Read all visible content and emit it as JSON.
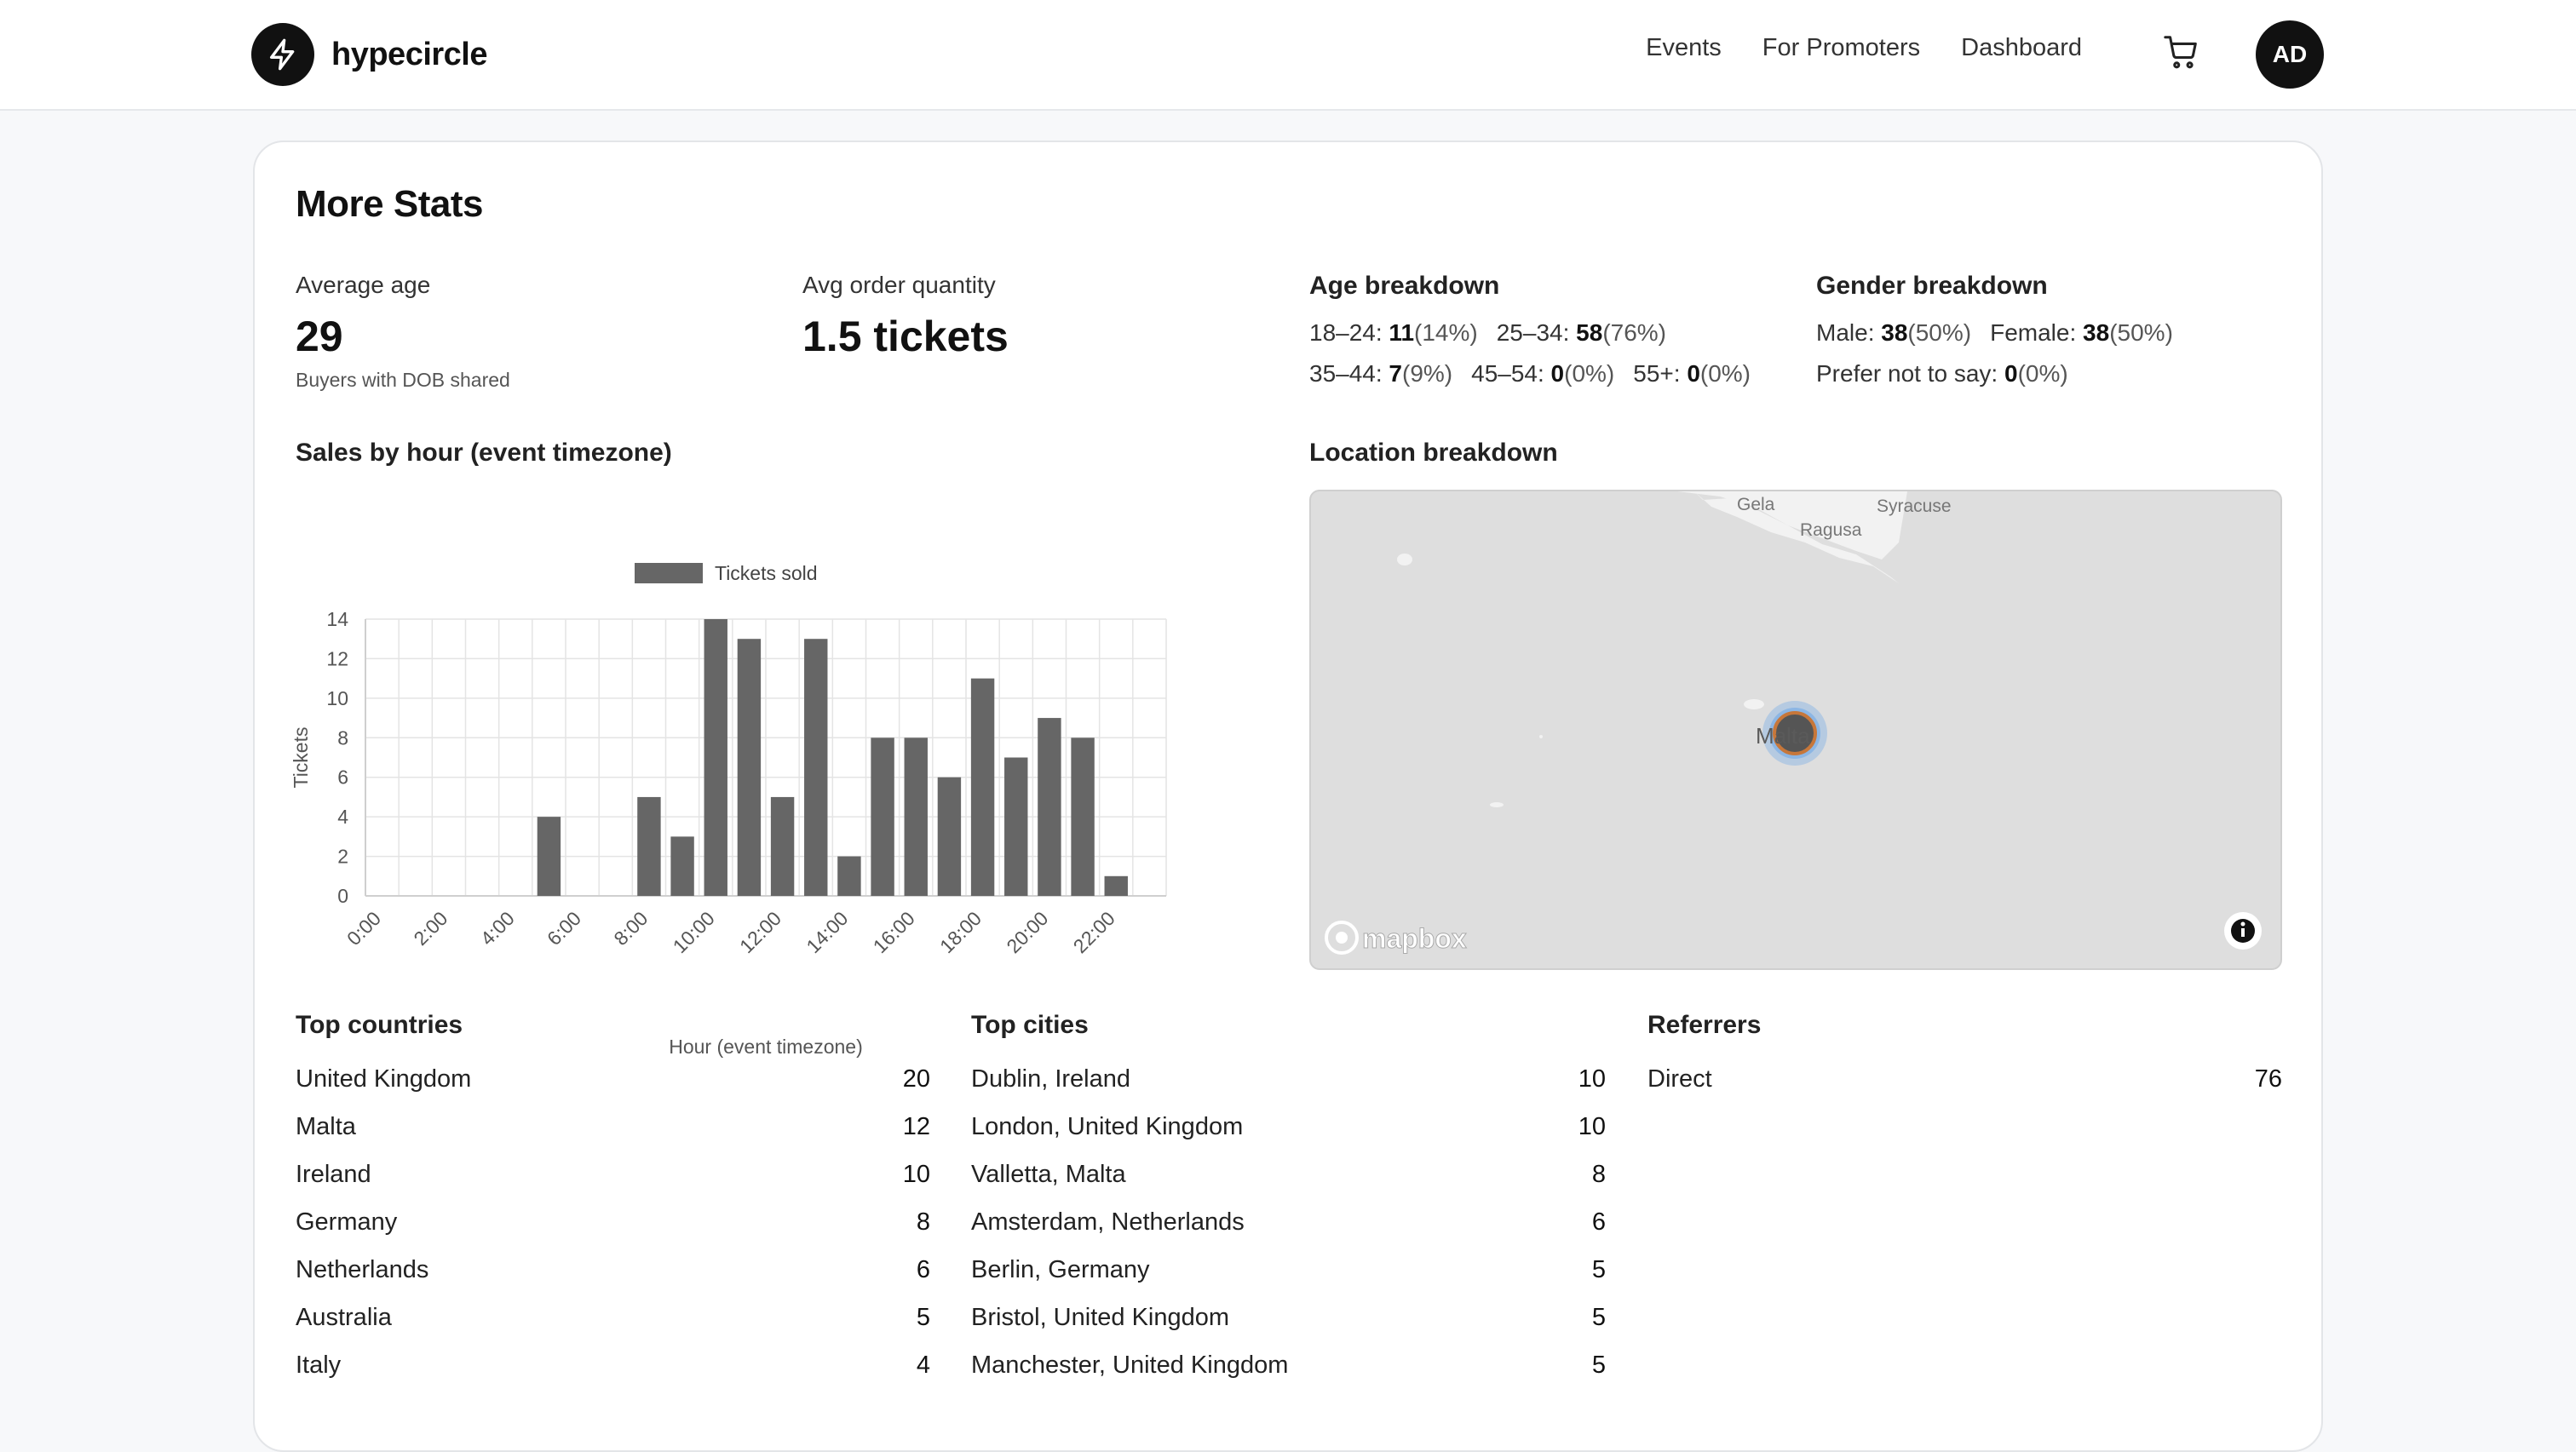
{
  "header": {
    "brand": "hypecircle",
    "nav": [
      "Events",
      "For Promoters",
      "Dashboard"
    ],
    "avatar_initials": "AD"
  },
  "card": {
    "title": "More Stats",
    "avg_age": {
      "label": "Average age",
      "value": "29",
      "note": "Buyers with DOB shared"
    },
    "avg_order": {
      "label": "Avg order quantity",
      "value": "1.5 tickets"
    },
    "age_breakdown": {
      "title": "Age breakdown",
      "rows": [
        [
          {
            "label": "18–24:",
            "count": "11",
            "pct": "(14%)"
          },
          {
            "label": "25–34:",
            "count": "58",
            "pct": "(76%)"
          }
        ],
        [
          {
            "label": "35–44:",
            "count": "7",
            "pct": "(9%)"
          },
          {
            "label": "45–54:",
            "count": "0",
            "pct": "(0%)"
          },
          {
            "label": "55+:",
            "count": "0",
            "pct": "(0%)"
          }
        ]
      ]
    },
    "gender_breakdown": {
      "title": "Gender breakdown",
      "rows": [
        [
          {
            "label": "Male:",
            "count": "38",
            "pct": "(50%)"
          },
          {
            "label": "Female:",
            "count": "38",
            "pct": "(50%)"
          }
        ],
        [
          {
            "label": "Prefer not to say:",
            "count": "0",
            "pct": "(0%)"
          }
        ]
      ]
    },
    "sales_title": "Sales by hour (event timezone)",
    "location_title": "Location breakdown",
    "map": {
      "labels": [
        "Gela",
        "Ragusa",
        "Syracuse",
        "Malta"
      ],
      "attribution": "mapbox",
      "info_icon": "info-icon"
    },
    "top_countries": {
      "title": "Top countries",
      "items": [
        {
          "name": "United Kingdom",
          "value": "20"
        },
        {
          "name": "Malta",
          "value": "12"
        },
        {
          "name": "Ireland",
          "value": "10"
        },
        {
          "name": "Germany",
          "value": "8"
        },
        {
          "name": "Netherlands",
          "value": "6"
        },
        {
          "name": "Australia",
          "value": "5"
        },
        {
          "name": "Italy",
          "value": "4"
        }
      ]
    },
    "top_cities": {
      "title": "Top cities",
      "items": [
        {
          "name": "Dublin, Ireland",
          "value": "10"
        },
        {
          "name": "London, United Kingdom",
          "value": "10"
        },
        {
          "name": "Valletta, Malta",
          "value": "8"
        },
        {
          "name": "Amsterdam, Netherlands",
          "value": "6"
        },
        {
          "name": "Berlin, Germany",
          "value": "5"
        },
        {
          "name": "Bristol, United Kingdom",
          "value": "5"
        },
        {
          "name": "Manchester, United Kingdom",
          "value": "5"
        }
      ]
    },
    "referrers": {
      "title": "Referrers",
      "items": [
        {
          "name": "Direct",
          "value": "76"
        }
      ]
    }
  },
  "chart_data": {
    "type": "bar",
    "title": "",
    "legend": "Tickets sold",
    "legend_position": "top",
    "xlabel": "Hour (event timezone)",
    "ylabel": "Tickets",
    "ylim": [
      0,
      14
    ],
    "yticks": [
      0,
      2,
      4,
      6,
      8,
      10,
      12,
      14
    ],
    "grid": true,
    "bar_color": "#666666",
    "categories": [
      "0:00",
      "1:00",
      "2:00",
      "3:00",
      "4:00",
      "5:00",
      "6:00",
      "7:00",
      "8:00",
      "9:00",
      "10:00",
      "11:00",
      "12:00",
      "13:00",
      "14:00",
      "15:00",
      "16:00",
      "17:00",
      "18:00",
      "19:00",
      "20:00",
      "21:00",
      "22:00",
      "23:00"
    ],
    "tick_labels_shown": [
      "0:00",
      "2:00",
      "4:00",
      "6:00",
      "8:00",
      "10:00",
      "12:00",
      "14:00",
      "16:00",
      "18:00",
      "20:00",
      "22:00"
    ],
    "series": [
      {
        "name": "Tickets sold",
        "values": [
          0,
          0,
          0,
          0,
          0,
          4,
          0,
          0,
          5,
          3,
          14,
          13,
          5,
          13,
          2,
          8,
          8,
          6,
          11,
          7,
          9,
          8,
          1,
          0
        ]
      }
    ]
  }
}
